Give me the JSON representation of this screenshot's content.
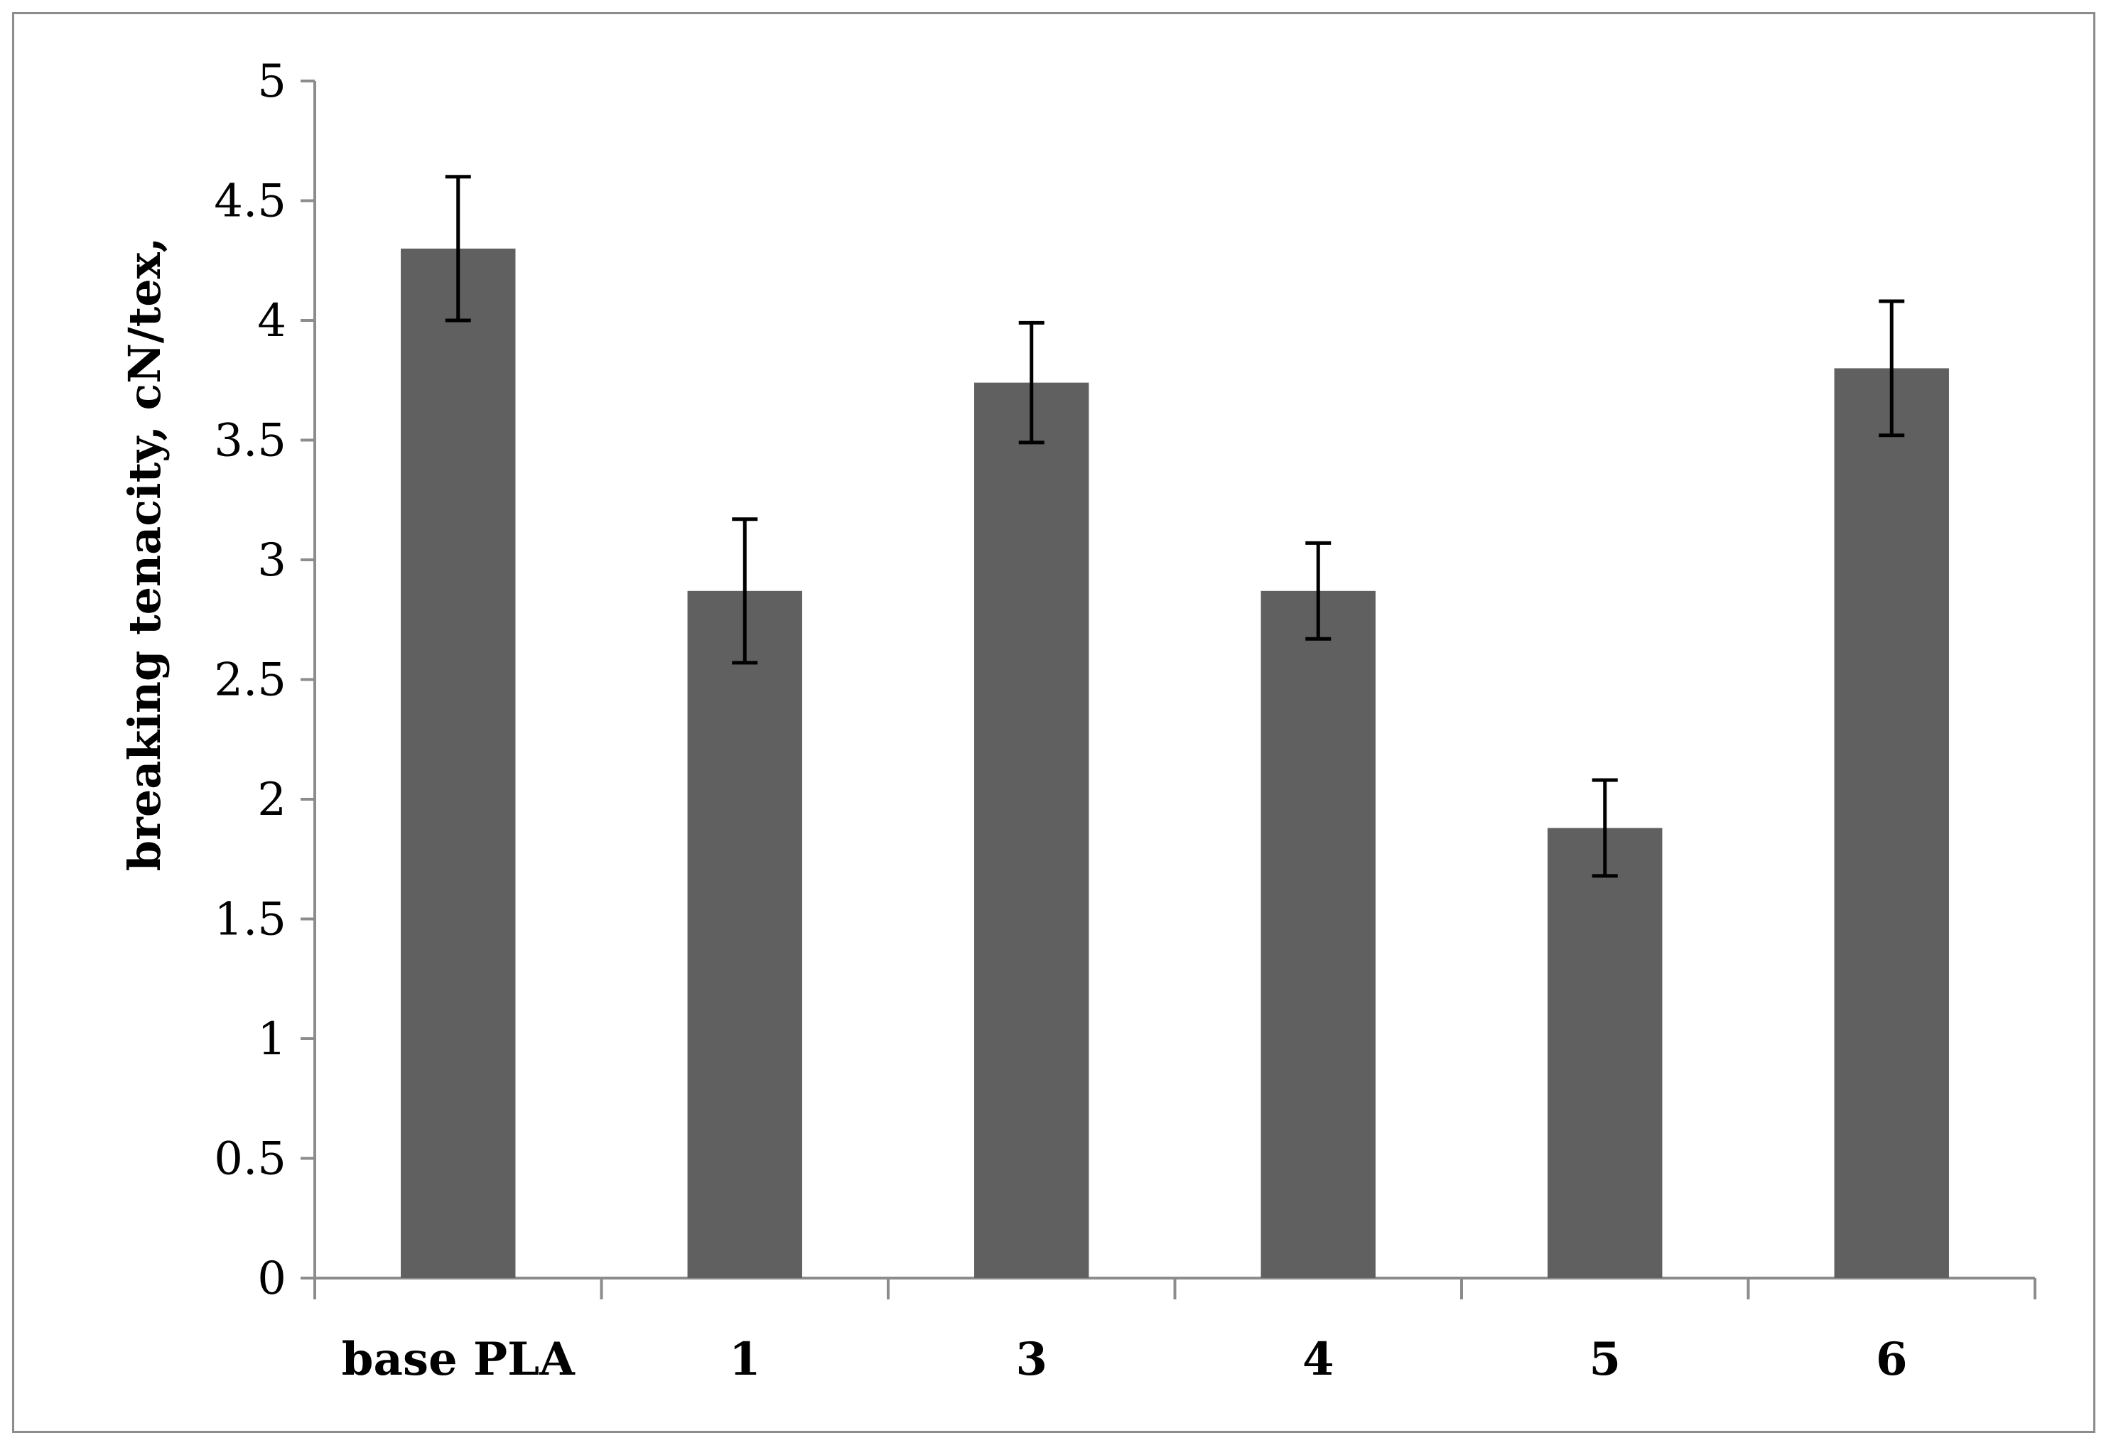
{
  "chart_data": {
    "type": "bar",
    "title": "",
    "xlabel": "",
    "ylabel": "breaking tenacity, cN/tex,",
    "ylim": [
      0,
      5
    ],
    "y_ticks": [
      "0",
      "0.5",
      "1",
      "1.5",
      "2",
      "2.5",
      "3",
      "3.5",
      "4",
      "4.5",
      "5"
    ],
    "grid": false,
    "legend": "none",
    "categories": [
      "base PLA",
      "1",
      "3",
      "4",
      "5",
      "6"
    ],
    "series": [
      {
        "values": [
          4.3,
          2.87,
          3.74,
          2.87,
          1.88,
          3.8
        ],
        "errors": [
          0.3,
          0.3,
          0.25,
          0.2,
          0.2,
          0.28
        ]
      }
    ],
    "colors": {
      "bar": "#606060",
      "axis": "#8c8c8c",
      "error_bar": "#000000"
    }
  }
}
